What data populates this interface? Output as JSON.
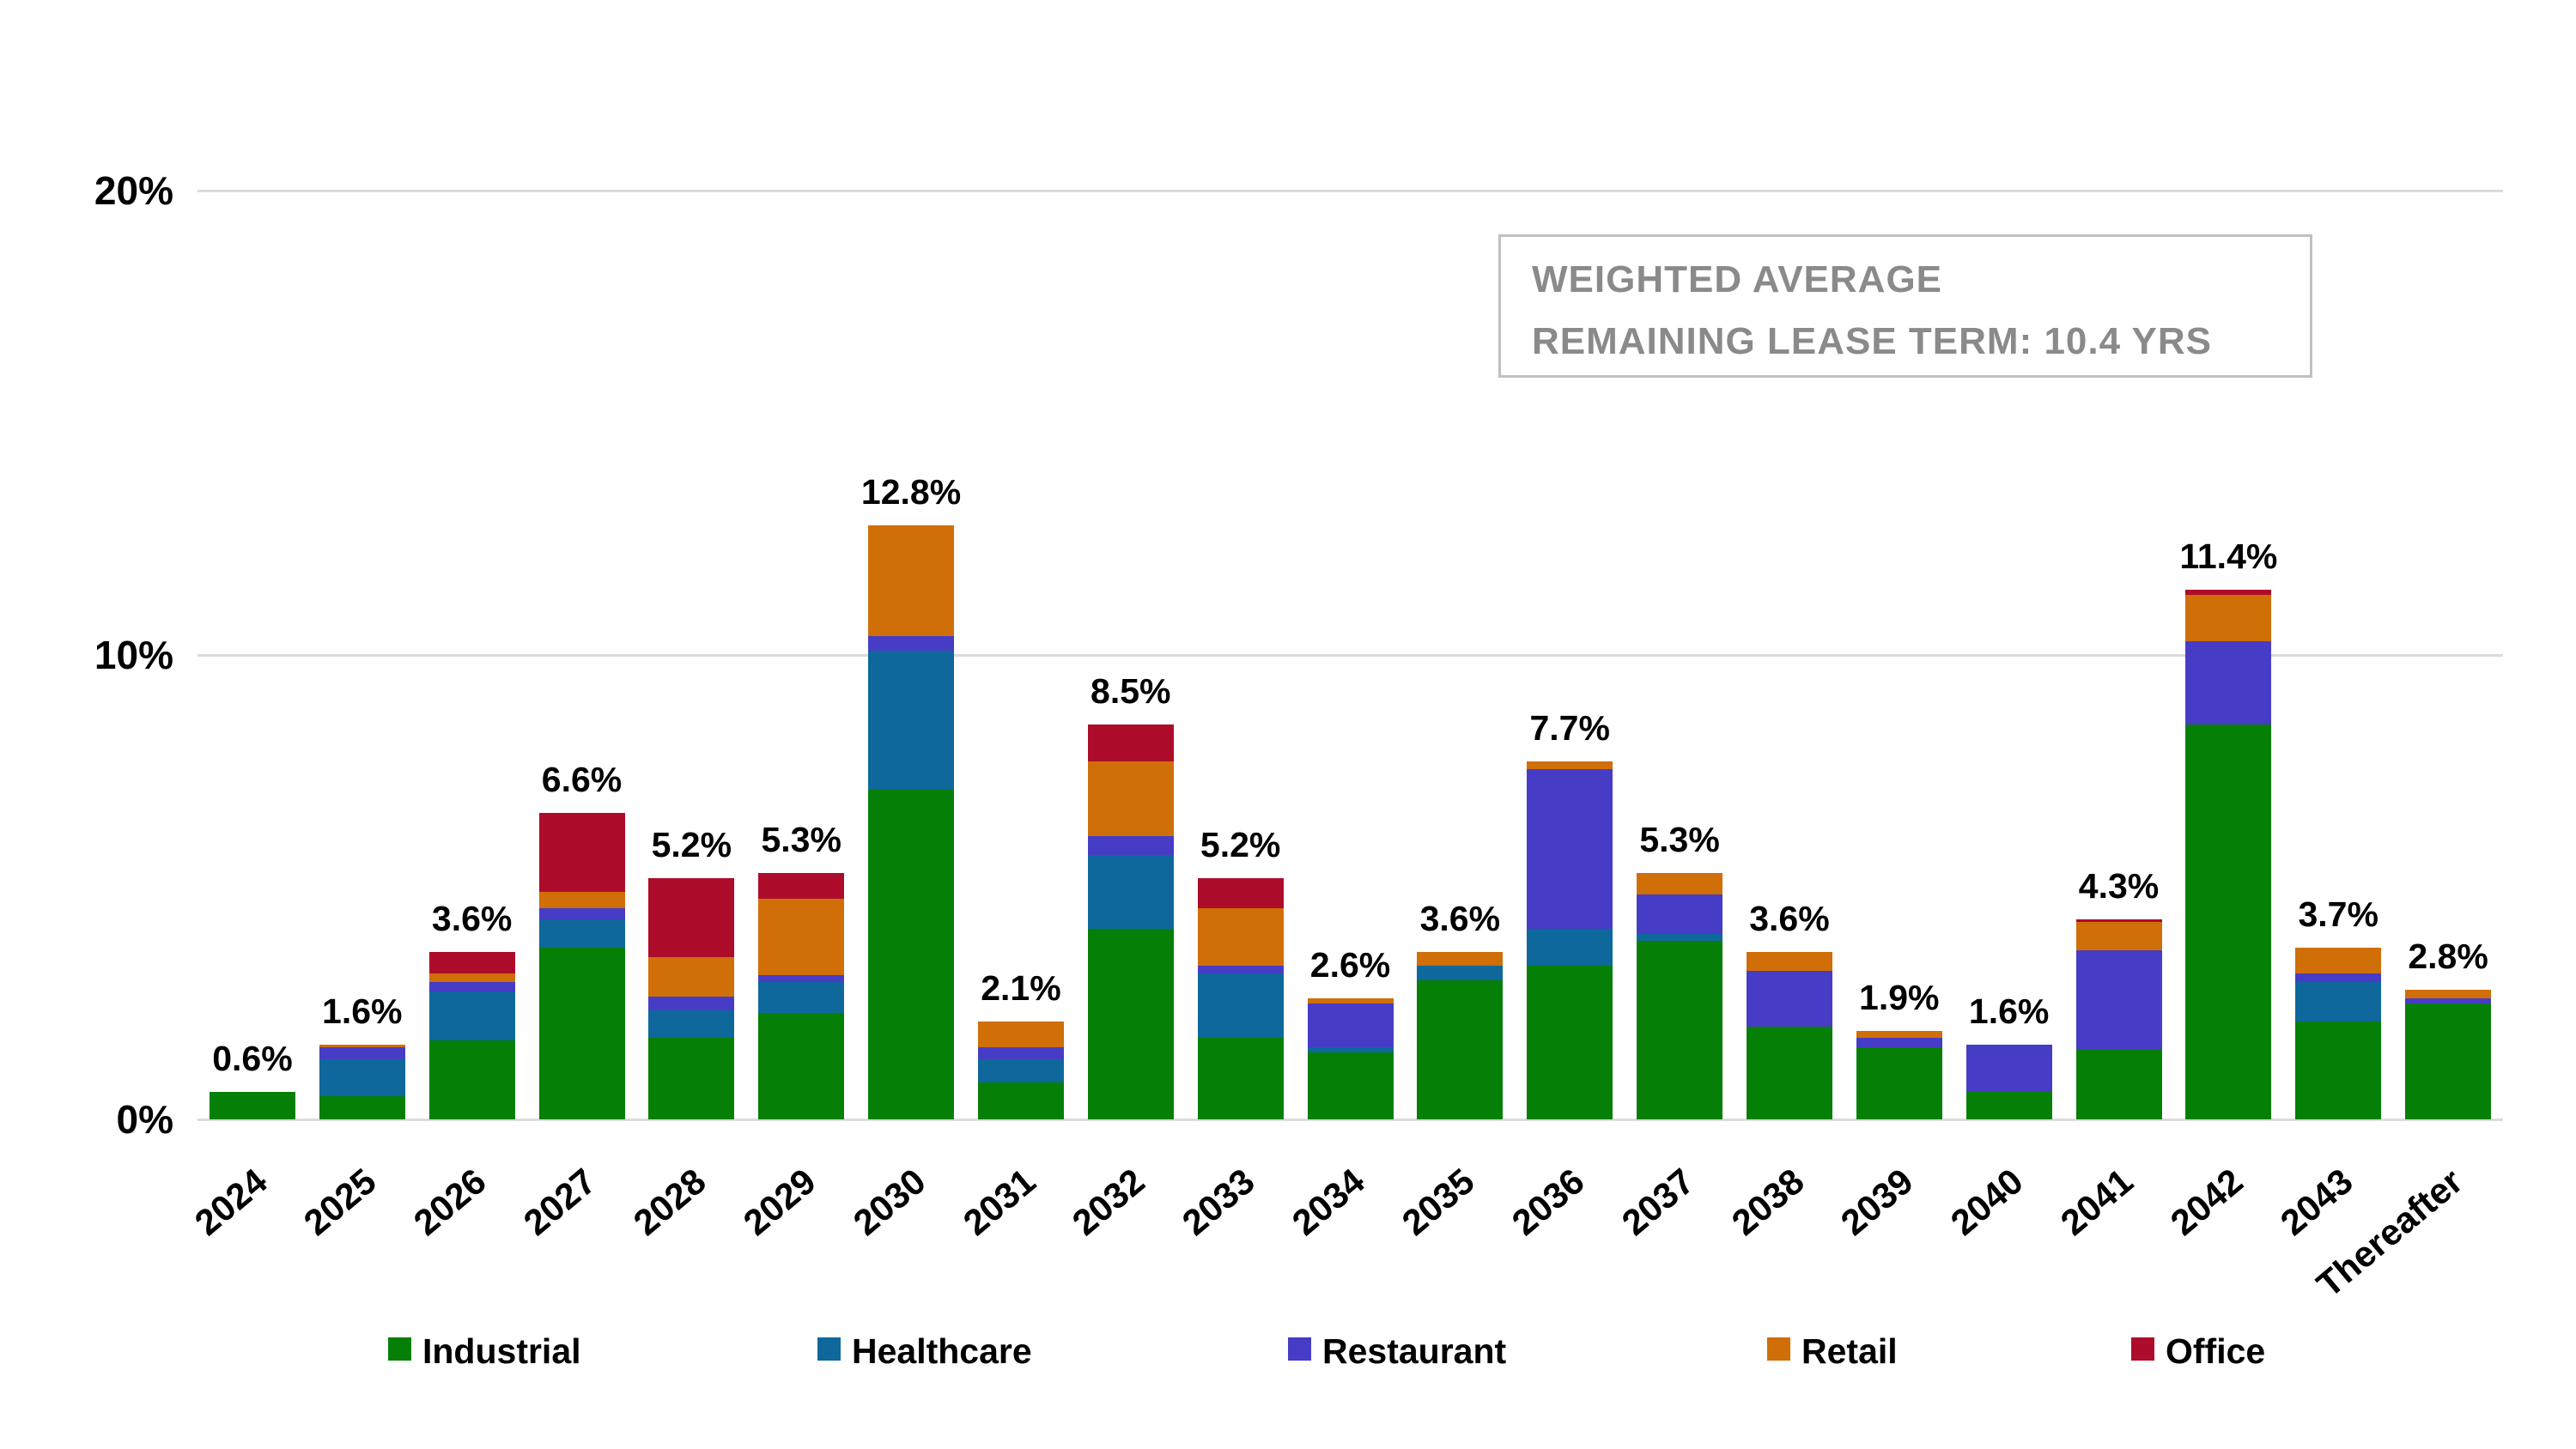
{
  "chart_data": {
    "type": "bar",
    "subtype": "stacked-vertical",
    "title": "",
    "xlabel": "",
    "ylabel": "",
    "ylim": [
      0,
      20
    ],
    "grid": "horizontal",
    "legend_position": "bottom",
    "yticks": [
      {
        "value": 0,
        "label": "0%"
      },
      {
        "value": 10,
        "label": "10%"
      },
      {
        "value": 20,
        "label": "20%"
      }
    ],
    "categories": [
      "2024",
      "2025",
      "2026",
      "2027",
      "2028",
      "2029",
      "2030",
      "2031",
      "2032",
      "2033",
      "2034",
      "2035",
      "2036",
      "2037",
      "2038",
      "2039",
      "2040",
      "2041",
      "2042",
      "2043",
      "Thereafter"
    ],
    "totals_labels": [
      "0.6%",
      "1.6%",
      "3.6%",
      "6.6%",
      "5.2%",
      "5.3%",
      "12.8%",
      "2.1%",
      "8.5%",
      "5.2%",
      "2.6%",
      "3.6%",
      "7.7%",
      "5.3%",
      "3.6%",
      "1.9%",
      "1.6%",
      "4.3%",
      "11.4%",
      "3.7%",
      "2.8%"
    ],
    "series": [
      {
        "name": "Industrial",
        "color": "#067F06",
        "values": [
          0.6,
          0.5,
          1.7,
          3.7,
          1.75,
          2.3,
          7.1,
          0.8,
          4.1,
          1.75,
          1.45,
          3.0,
          3.3,
          3.85,
          2.0,
          1.55,
          0.6,
          1.5,
          8.5,
          2.1,
          2.5
        ]
      },
      {
        "name": "Healthcare",
        "color": "#0E689B",
        "values": [
          0,
          0.8,
          1.05,
          0.6,
          0.6,
          0.65,
          3.0,
          0.5,
          1.6,
          1.4,
          0.1,
          0.3,
          0.8,
          0.15,
          0,
          0,
          0,
          0,
          0,
          0.85,
          0
        ]
      },
      {
        "name": "Restaurant",
        "color": "#473CC6",
        "values": [
          0,
          0.25,
          0.2,
          0.25,
          0.3,
          0.15,
          0.3,
          0.25,
          0.4,
          0.15,
          0.95,
          0,
          3.45,
          0.85,
          1.2,
          0.2,
          1.0,
          2.15,
          1.8,
          0.2,
          0.1
        ]
      },
      {
        "name": "Retail",
        "color": "#D06E08",
        "values": [
          0,
          0.05,
          0.2,
          0.35,
          0.85,
          1.65,
          2.4,
          0.55,
          1.6,
          1.25,
          0.1,
          0.3,
          0.15,
          0.45,
          0.4,
          0.15,
          0,
          0.6,
          1.0,
          0.55,
          0.2
        ]
      },
      {
        "name": "Office",
        "color": "#AD0C2B",
        "values": [
          0,
          0,
          0.45,
          1.7,
          1.7,
          0.55,
          0,
          0,
          0.8,
          0.65,
          0,
          0,
          0,
          0,
          0,
          0,
          0,
          0.05,
          0.1,
          0,
          0
        ]
      }
    ],
    "annotation": {
      "line1": "WEIGHTED AVERAGE",
      "line2": "REMAINING LEASE TERM: 10.4 YRS"
    }
  },
  "colors": {
    "gridline": "#dbdbdb",
    "annotation_border": "#c0c0c0",
    "annotation_text": "#8a8a8a",
    "axis_text": "#000000"
  }
}
